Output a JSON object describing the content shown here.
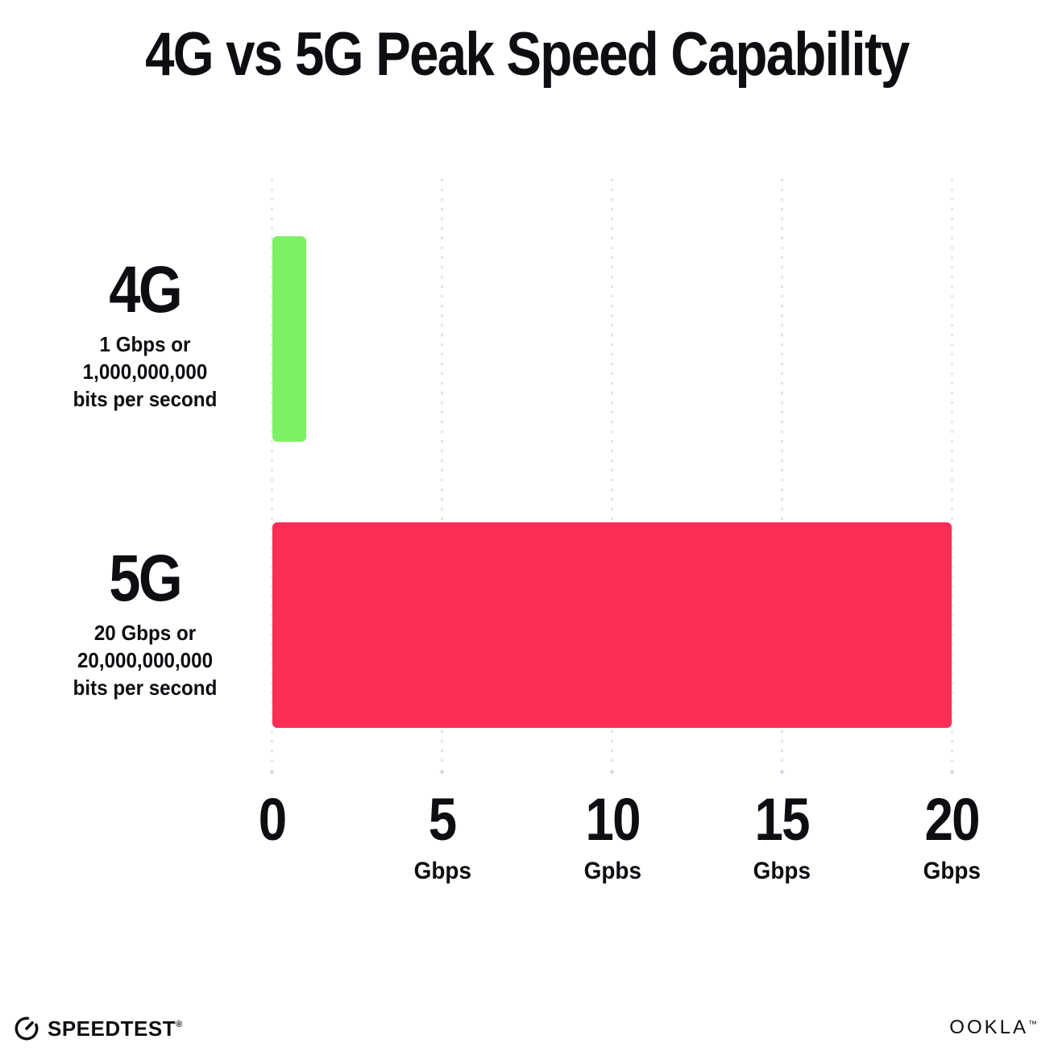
{
  "title": "4G vs 5G Peak Speed Capability",
  "chart_data": {
    "type": "bar",
    "orientation": "horizontal",
    "title": "4G vs 5G Peak Speed Capability",
    "categories": [
      "4G",
      "5G"
    ],
    "values": [
      1,
      20
    ],
    "unit": "Gbps",
    "colors": [
      "#7df165",
      "#fd2e56"
    ],
    "xlim": [
      0,
      20
    ],
    "grid": "dotted-vertical-gridlines-every-5",
    "legend": "none",
    "x_ticks": [
      {
        "label": "0",
        "unit": ""
      },
      {
        "label": "5",
        "unit": "Gbps"
      },
      {
        "label": "10",
        "unit": "Gpbs"
      },
      {
        "label": "15",
        "unit": "Gbps"
      },
      {
        "label": "20",
        "unit": "Gbps"
      }
    ],
    "bar_annotations": [
      {
        "category": "4G",
        "lines": [
          "1 Gbps or",
          "1,000,000,000",
          "bits per second"
        ]
      },
      {
        "category": "5G",
        "lines": [
          "20 Gbps or",
          "20,000,000,000",
          "bits per second"
        ]
      }
    ]
  },
  "footer": {
    "speedtest_label": "SPEEDTEST",
    "speedtest_mark": "®",
    "ookla_label": "OOKLA",
    "ookla_mark": "™"
  }
}
